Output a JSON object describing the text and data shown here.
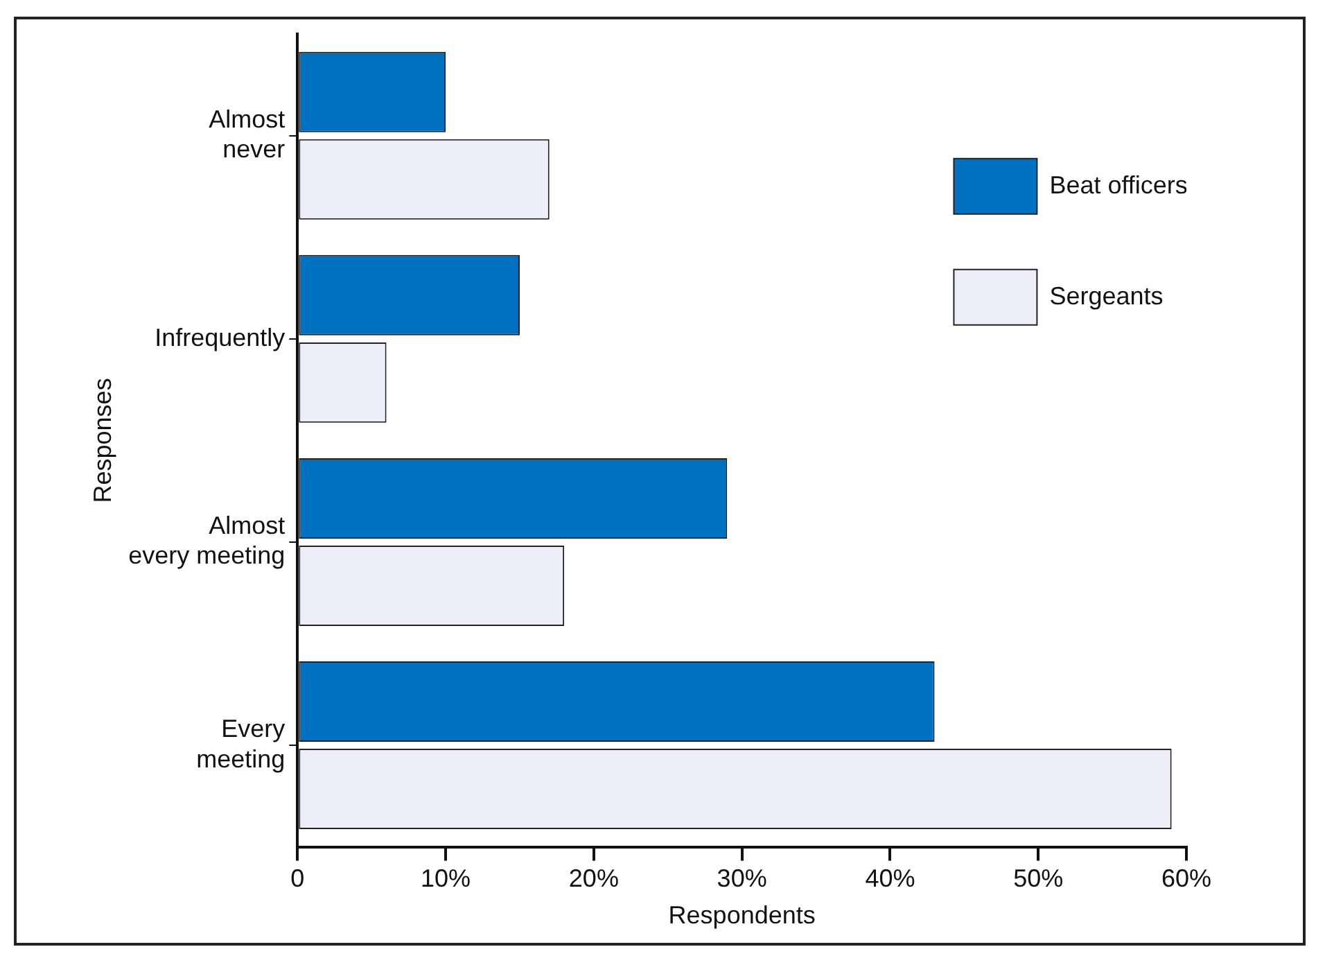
{
  "chart_data": {
    "type": "bar",
    "orientation": "horizontal",
    "xlabel": "Respondents",
    "ylabel": "Responses",
    "categories": [
      "Almost never",
      "Infrequently",
      "Almost every meeting",
      "Every meeting"
    ],
    "series": [
      {
        "name": "Beat officers",
        "color": "#0070c0",
        "values": [
          10,
          15,
          29,
          43
        ]
      },
      {
        "name": "Sergeants",
        "color": "#eceef8",
        "values": [
          17,
          6,
          18,
          59
        ]
      }
    ],
    "xlim": [
      0,
      60
    ],
    "xticks": [
      0,
      {
        "value": 10,
        "label": "10%"
      },
      {
        "value": 20,
        "label": "20%"
      },
      {
        "value": 30,
        "label": "30%"
      },
      {
        "value": 40,
        "label": "40%"
      },
      {
        "value": 50,
        "label": "50%"
      },
      {
        "value": 60,
        "label": "60%"
      }
    ],
    "grid": false,
    "legend": "top right"
  }
}
